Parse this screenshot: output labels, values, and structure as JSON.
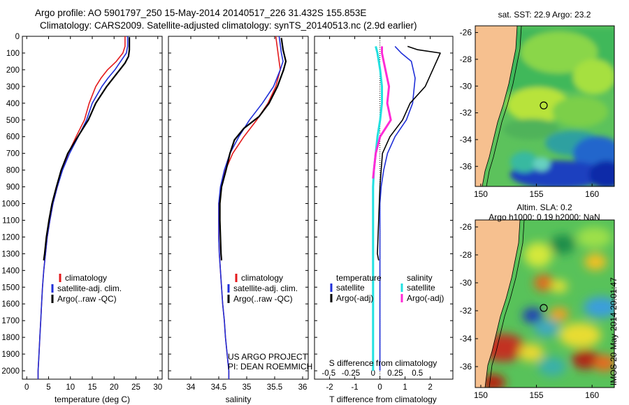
{
  "header": {
    "line1": "Argo profile: AO 5901797_250 15-May-2014 20140517_226 31.432S 155.853E",
    "line2": "Climatology: CARS2009. Satellite-adjusted climatology: synTS_20140513.nc (2.9d earlier)"
  },
  "project": {
    "line1": "US ARGO PROJECT",
    "line2": "PI: DEAN ROEMMICH"
  },
  "stamp": "IMOS 20-May-2014 20:01:47",
  "colors": {
    "climatology": "#e41a1c",
    "satellite": "#1f2fd8",
    "argo": "#000000",
    "sal_sat": "#22e0e0",
    "sal_argo": "#ff2bd6",
    "land": "#f6c08f"
  },
  "chart_data": [
    {
      "type": "line",
      "xlabel": "temperature (deg C)",
      "ylim": [
        2050,
        0
      ],
      "xlim": [
        -1,
        31
      ],
      "xticks": [
        0,
        5,
        10,
        15,
        20,
        25,
        30
      ],
      "yticks": [
        0,
        100,
        200,
        300,
        400,
        500,
        600,
        700,
        800,
        900,
        1000,
        1100,
        1200,
        1300,
        1400,
        1500,
        1600,
        1700,
        1800,
        1900,
        2000
      ],
      "legend": [
        "climatology",
        "satellite-adj. clim.",
        "Argo(..raw -QC)"
      ],
      "series": [
        {
          "name": "climatology",
          "points": [
            [
              22.5,
              0
            ],
            [
              22.5,
              60
            ],
            [
              22,
              100
            ],
            [
              20.5,
              150
            ],
            [
              18.5,
              200
            ],
            [
              17,
              250
            ],
            [
              15.8,
              300
            ],
            [
              14.3,
              400
            ],
            [
              13.2,
              500
            ],
            [
              11.3,
              600
            ],
            [
              9.5,
              700
            ],
            [
              8.1,
              800
            ],
            [
              7.0,
              900
            ],
            [
              6.0,
              1000
            ],
            [
              5.3,
              1100
            ],
            [
              4.7,
              1200
            ],
            [
              4.3,
              1300
            ],
            [
              3.9,
              1400
            ],
            [
              3.6,
              1500
            ],
            [
              3.4,
              1600
            ],
            [
              3.2,
              1700
            ],
            [
              3.0,
              1800
            ],
            [
              2.8,
              1900
            ],
            [
              2.6,
              2000
            ],
            [
              2.6,
              2050
            ]
          ]
        },
        {
          "name": "satellite-adj. clim.",
          "points": [
            [
              23.1,
              0
            ],
            [
              23.1,
              60
            ],
            [
              22.8,
              100
            ],
            [
              21.5,
              150
            ],
            [
              20.2,
              200
            ],
            [
              18.6,
              250
            ],
            [
              17.2,
              300
            ],
            [
              15.0,
              400
            ],
            [
              13.7,
              500
            ],
            [
              11.8,
              600
            ],
            [
              9.8,
              700
            ],
            [
              8.2,
              800
            ],
            [
              7.0,
              900
            ],
            [
              6.0,
              1000
            ],
            [
              5.3,
              1100
            ],
            [
              4.7,
              1200
            ],
            [
              4.3,
              1300
            ],
            [
              3.9,
              1400
            ],
            [
              3.6,
              1500
            ],
            [
              3.4,
              1600
            ],
            [
              3.2,
              1700
            ],
            [
              3.0,
              1800
            ],
            [
              2.8,
              1900
            ],
            [
              2.6,
              2000
            ],
            [
              2.6,
              2050
            ]
          ]
        },
        {
          "name": "Argo(..raw -QC)",
          "points": [
            [
              23.5,
              5
            ],
            [
              23.5,
              80
            ],
            [
              23.3,
              120
            ],
            [
              22.5,
              160
            ],
            [
              21.3,
              200
            ],
            [
              19.8,
              250
            ],
            [
              18.3,
              300
            ],
            [
              15.8,
              400
            ],
            [
              14.1,
              500
            ],
            [
              11.7,
              600
            ],
            [
              9.4,
              700
            ],
            [
              7.9,
              800
            ],
            [
              6.8,
              900
            ],
            [
              5.8,
              1000
            ],
            [
              5.1,
              1100
            ],
            [
              4.5,
              1200
            ],
            [
              4.1,
              1300
            ],
            [
              3.9,
              1340
            ]
          ]
        }
      ]
    },
    {
      "type": "line",
      "xlabel": "salinity",
      "ylim": [
        2050,
        0
      ],
      "xlim": [
        33.6,
        36.1
      ],
      "xticks": [
        34,
        34.5,
        35,
        35.5,
        36
      ],
      "legend": [
        "climatology",
        "satellite-adj. clim.",
        "Argo(..raw -QC)"
      ],
      "series": [
        {
          "name": "climatology",
          "points": [
            [
              35.52,
              0
            ],
            [
              35.56,
              100
            ],
            [
              35.6,
              200
            ],
            [
              35.52,
              300
            ],
            [
              35.38,
              400
            ],
            [
              35.18,
              500
            ],
            [
              34.95,
              600
            ],
            [
              34.75,
              700
            ],
            [
              34.62,
              800
            ],
            [
              34.54,
              900
            ],
            [
              34.5,
              1000
            ],
            [
              34.5,
              1100
            ],
            [
              34.5,
              1200
            ],
            [
              34.51,
              1300
            ],
            [
              34.53,
              1400
            ],
            [
              34.55,
              1500
            ],
            [
              34.57,
              1600
            ],
            [
              34.6,
              1700
            ],
            [
              34.62,
              1800
            ],
            [
              34.65,
              1900
            ],
            [
              34.68,
              2000
            ],
            [
              34.68,
              2050
            ]
          ]
        },
        {
          "name": "satellite-adj. clim.",
          "points": [
            [
              35.58,
              0
            ],
            [
              35.62,
              100
            ],
            [
              35.65,
              150
            ],
            [
              35.6,
              200
            ],
            [
              35.48,
              300
            ],
            [
              35.28,
              400
            ],
            [
              35.05,
              500
            ],
            [
              34.86,
              600
            ],
            [
              34.7,
              700
            ],
            [
              34.6,
              800
            ],
            [
              34.53,
              900
            ],
            [
              34.5,
              1000
            ],
            [
              34.5,
              1100
            ],
            [
              34.5,
              1200
            ],
            [
              34.51,
              1300
            ],
            [
              34.53,
              1400
            ],
            [
              34.55,
              1500
            ],
            [
              34.57,
              1600
            ],
            [
              34.6,
              1700
            ],
            [
              34.62,
              1800
            ],
            [
              34.65,
              1900
            ],
            [
              34.68,
              2000
            ],
            [
              34.68,
              2050
            ]
          ]
        },
        {
          "name": "Argo(..raw -QC)",
          "points": [
            [
              35.62,
              10
            ],
            [
              35.65,
              80
            ],
            [
              35.7,
              150
            ],
            [
              35.66,
              200
            ],
            [
              35.55,
              300
            ],
            [
              35.4,
              400
            ],
            [
              35.22,
              480
            ],
            [
              34.95,
              550
            ],
            [
              34.78,
              620
            ],
            [
              34.7,
              700
            ],
            [
              34.63,
              800
            ],
            [
              34.55,
              900
            ],
            [
              34.52,
              1000
            ],
            [
              34.52,
              1100
            ],
            [
              34.53,
              1200
            ],
            [
              34.54,
              1300
            ],
            [
              34.55,
              1340
            ]
          ]
        }
      ]
    },
    {
      "type": "line",
      "xlabel": "T difference from climatology",
      "xlabel_top": "S difference from climatology",
      "ylim": [
        2050,
        0
      ],
      "xlim": [
        -2.6,
        2.9
      ],
      "xticks": [
        -2,
        -1,
        0,
        1,
        2
      ],
      "sticks": [
        -0.5,
        -0.25,
        0,
        0.25,
        0.5
      ],
      "legend_headers": [
        "temperature",
        "salinity"
      ],
      "legend": [
        "satellite",
        "Argo(-adj)",
        "satellite",
        "Argo(-adj)"
      ],
      "series": [
        {
          "name": "satellite",
          "group": "temperature",
          "points": [
            [
              0.6,
              60
            ],
            [
              0.85,
              100
            ],
            [
              1.25,
              150
            ],
            [
              1.4,
              250
            ],
            [
              1.3,
              400
            ],
            [
              1.05,
              500
            ],
            [
              0.6,
              600
            ],
            [
              0.3,
              700
            ],
            [
              0.15,
              800
            ],
            [
              0.05,
              900
            ],
            [
              0,
              1000
            ],
            [
              0,
              2000
            ]
          ]
        },
        {
          "name": "Argo(-adj)",
          "group": "temperature",
          "points": [
            [
              1.1,
              60
            ],
            [
              1.5,
              80
            ],
            [
              2.4,
              100
            ],
            [
              2.25,
              150
            ],
            [
              1.8,
              300
            ],
            [
              1.2,
              400
            ],
            [
              0.9,
              500
            ],
            [
              0.4,
              600
            ],
            [
              0.1,
              700
            ],
            [
              0.05,
              800
            ],
            [
              0,
              900
            ],
            [
              -0.05,
              1100
            ],
            [
              -0.1,
              1300
            ],
            [
              -0.05,
              1340
            ]
          ]
        },
        {
          "name": "satellite",
          "group": "salinity",
          "points": [
            [
              0.03,
              60
            ],
            [
              0.05,
              100
            ],
            [
              0.08,
              200
            ],
            [
              0.1,
              300
            ],
            [
              0.1,
              400
            ],
            [
              0.08,
              500
            ],
            [
              0.05,
              600
            ],
            [
              0.03,
              700
            ],
            [
              0.01,
              800
            ],
            [
              0,
              900
            ],
            [
              0,
              1000
            ],
            [
              0,
              2000
            ]
          ]
        },
        {
          "name": "Argo(-adj)",
          "group": "salinity",
          "points": [
            [
              0.1,
              60
            ],
            [
              0.1,
              100
            ],
            [
              0.14,
              200
            ],
            [
              0.18,
              300
            ],
            [
              0.16,
              400
            ],
            [
              0.2,
              500
            ],
            [
              0.08,
              600
            ],
            [
              0.03,
              700
            ],
            [
              0.01,
              800
            ],
            [
              0,
              850
            ]
          ]
        }
      ]
    },
    {
      "type": "heatmap",
      "title": "sat. SST: 22.9 Argo: 23.2",
      "xticks": [
        150,
        155,
        160
      ],
      "yticks": [
        -26,
        -28,
        -30,
        -32,
        -34,
        -36
      ],
      "xlim": [
        149.5,
        162
      ],
      "ylim": [
        -37.5,
        -25.5
      ],
      "marker": [
        155.853,
        -31.432
      ]
    },
    {
      "type": "heatmap",
      "title": "Altim. SLA: 0.2",
      "subtitle": "Argo h1000: 0.19 h2000: NaN",
      "xticks": [
        150,
        155,
        160
      ],
      "yticks": [
        -26,
        -28,
        -30,
        -32,
        -34,
        -36
      ],
      "xlim": [
        149.5,
        162
      ],
      "ylim": [
        -37.5,
        -25.5
      ],
      "marker": [
        155.853,
        -31.432
      ]
    }
  ]
}
